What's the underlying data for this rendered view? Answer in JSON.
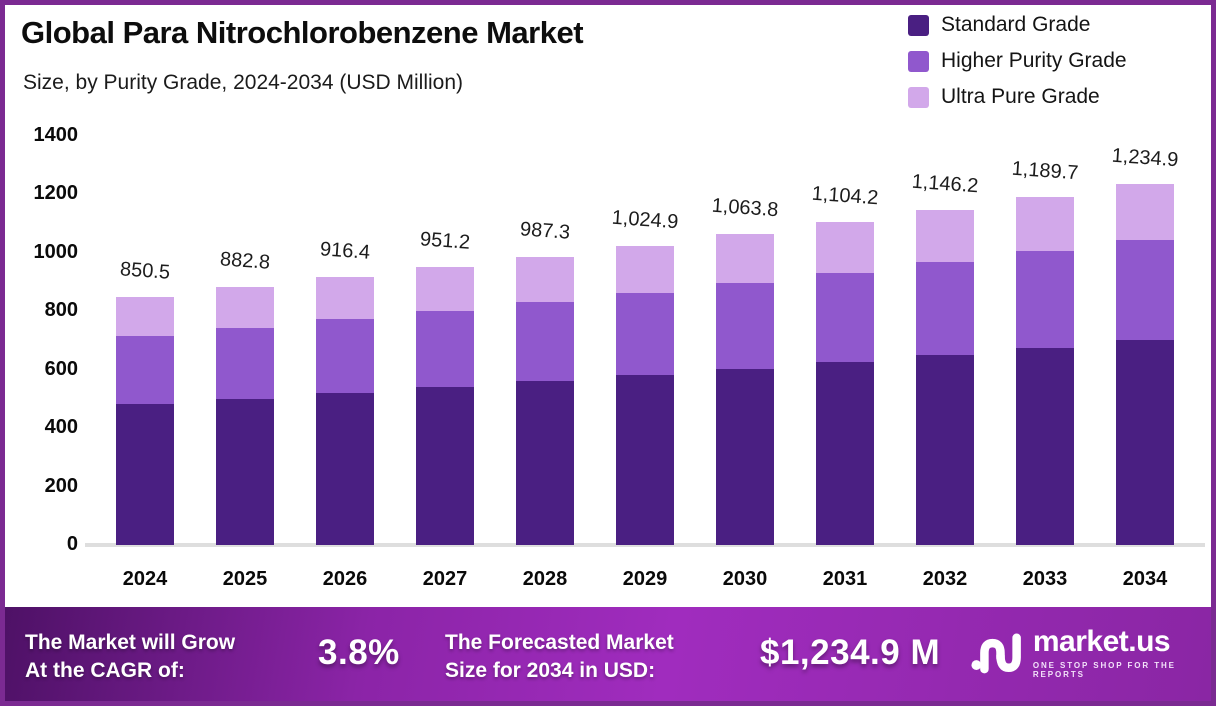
{
  "header": {
    "title": "Global Para Nitrochlorobenzene Market",
    "subtitle": "Size, by Purity Grade, 2024-2034 (USD Million)"
  },
  "legend": [
    {
      "label": "Standard Grade",
      "color": "#4a1f82"
    },
    {
      "label": "Higher Purity Grade",
      "color": "#9058cd"
    },
    {
      "label": "Ultra Pure Grade",
      "color": "#d2a8ea"
    }
  ],
  "chart_data": {
    "type": "bar",
    "stacked": true,
    "title": "Global Para Nitrochlorobenzene Market Size, by Purity Grade, 2024-2034 (USD Million)",
    "categories": [
      "2024",
      "2025",
      "2026",
      "2027",
      "2028",
      "2029",
      "2030",
      "2031",
      "2032",
      "2033",
      "2034"
    ],
    "series": [
      {
        "name": "Standard Grade",
        "color": "#4a1f82",
        "values": [
          483,
          501,
          520,
          540,
          560,
          581,
          603,
          626,
          650,
          675,
          701
        ]
      },
      {
        "name": "Higher Purity Grade",
        "color": "#9058cd",
        "values": [
          233,
          242,
          252,
          262,
          272,
          283,
          294,
          306,
          318,
          331,
          344
        ]
      },
      {
        "name": "Ultra Pure Grade",
        "color": "#d2a8ea",
        "values": [
          134.5,
          139.8,
          144.4,
          149.2,
          155.3,
          160.9,
          166.8,
          172.2,
          178.2,
          183.7,
          189.9
        ]
      }
    ],
    "totals": [
      850.5,
      882.8,
      916.4,
      951.2,
      987.3,
      1024.9,
      1063.8,
      1104.2,
      1146.2,
      1189.7,
      1234.9
    ],
    "total_labels": [
      "850.5",
      "882.8",
      "916.4",
      "951.2",
      "987.3",
      "1,024.9",
      "1,063.8",
      "1,104.2",
      "1,146.2",
      "1,189.7",
      "1,234.9"
    ],
    "xlabel": "",
    "ylabel": "",
    "ylim": [
      0,
      1400
    ],
    "yticks": [
      "0",
      "200",
      "400",
      "600",
      "800",
      "1000",
      "1200",
      "1400"
    ],
    "grid": false,
    "legend_position": "top-right"
  },
  "footer": {
    "cagr_label": "The Market will Grow\nAt the CAGR of:",
    "cagr_value": "3.8%",
    "forecast_label": "The Forecasted Market\nSize for 2034 in USD:",
    "forecast_value": "$1,234.9 M",
    "brand_name": "market.us",
    "brand_tagline": "ONE STOP SHOP FOR THE REPORTS"
  }
}
